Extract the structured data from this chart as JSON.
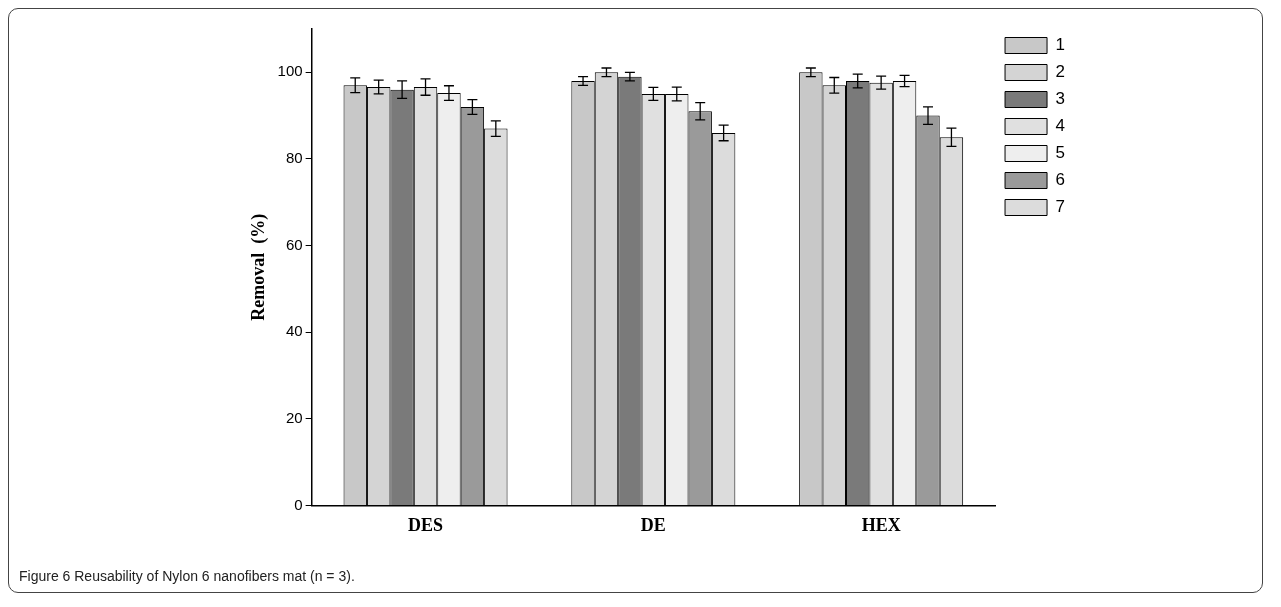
{
  "chart_data": {
    "type": "bar",
    "ylabel": "Removal  (%)",
    "categories": [
      "DES",
      "DE",
      "HEX"
    ],
    "series": [
      {
        "name": "1",
        "color": "#c8c8c8",
        "values": [
          97,
          98,
          100
        ],
        "errors": [
          1.7,
          1,
          1
        ]
      },
      {
        "name": "2",
        "color": "#d4d4d4",
        "values": [
          96.6,
          100,
          97
        ],
        "errors": [
          1.6,
          1,
          1.8
        ]
      },
      {
        "name": "3",
        "color": "#7a7a7a",
        "values": [
          96,
          99,
          98
        ],
        "errors": [
          2,
          1,
          1.6
        ]
      },
      {
        "name": "4",
        "color": "#e0e0e0",
        "values": [
          96.6,
          95,
          97.6
        ],
        "errors": [
          1.9,
          1.5,
          1.5
        ]
      },
      {
        "name": "5",
        "color": "#eeeeee",
        "values": [
          95.2,
          95,
          98
        ],
        "errors": [
          1.7,
          1.6,
          1.3
        ]
      },
      {
        "name": "6",
        "color": "#9a9a9a",
        "values": [
          92,
          91,
          90
        ],
        "errors": [
          1.7,
          2,
          2
        ]
      },
      {
        "name": "7",
        "color": "#dcdcdc",
        "values": [
          87,
          86,
          85
        ],
        "errors": [
          1.8,
          1.8,
          2.1
        ]
      }
    ],
    "ylim": [
      0,
      110
    ],
    "yticks": [
      0,
      20,
      40,
      60,
      80,
      100
    ],
    "grid": false,
    "legend": "top right",
    "annotations": [
      "Figure 6 Reusability of Nylon 6 nanofibers mat (n = 3)."
    ]
  }
}
